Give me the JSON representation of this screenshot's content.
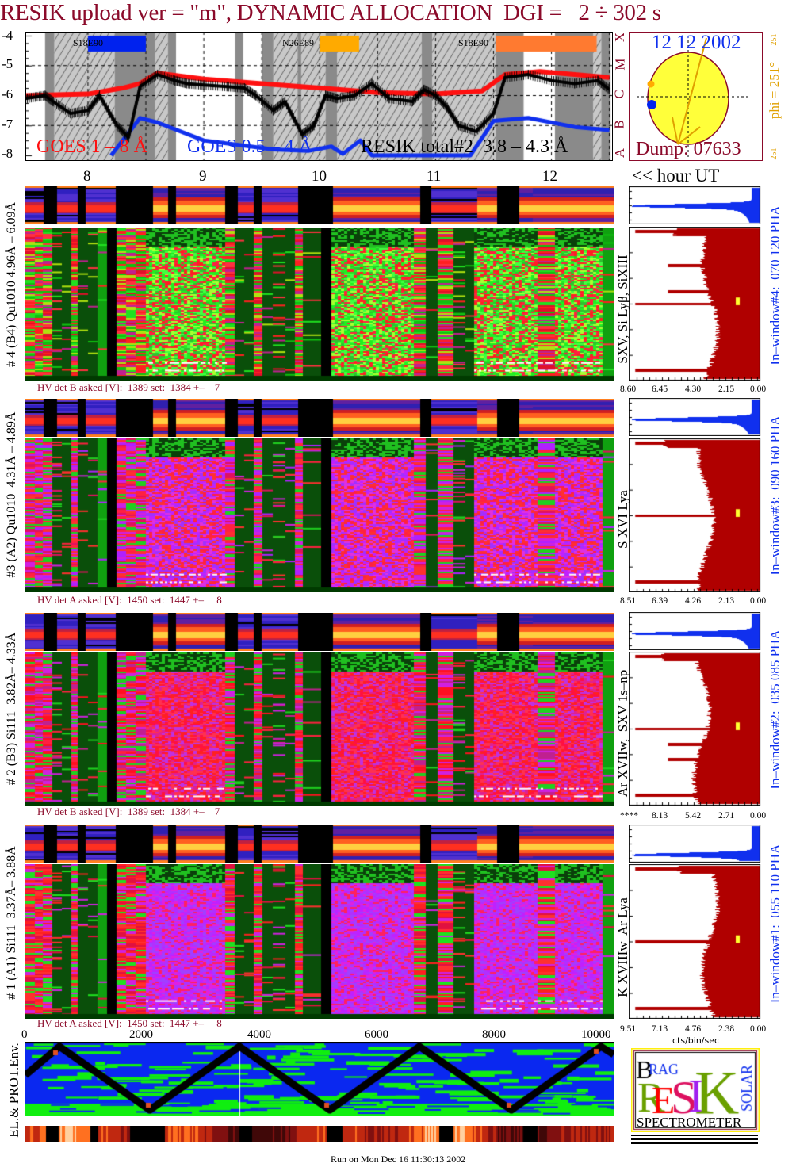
{
  "title": "RESIK upload ver = \"m\", DYNAMIC ALLOCATION  DGI =   2 ÷ 302 s",
  "goes_plot": {
    "y_ticks": [
      "-4",
      "-5",
      "-6",
      "-7",
      "-8"
    ],
    "class_letters": [
      "X",
      "M",
      "C",
      "B",
      "A"
    ],
    "regions": [
      {
        "label": "S18E90",
        "color": "#0022ee"
      },
      {
        "label": "N26E89",
        "color": "#ffaa00"
      },
      {
        "label": "S18E90",
        "color": "#ff7a30"
      }
    ],
    "legend": {
      "goes_long": "GOES 1 – 8 Å",
      "goes_short": "GOES 0.5 – 4 Å",
      "resik": "RESIK total#2  3.8 – 4.3 Å"
    },
    "colors": {
      "goes_long": "#ff1010",
      "goes_short": "#1030ee",
      "resik": "#000000"
    }
  },
  "sun": {
    "date": "12 12 2002",
    "dump": "Dump: 07633",
    "phi": "phi = 251°",
    "phi_small": "251",
    "phi_small2": "251"
  },
  "hours": {
    "ticks": [
      "8",
      "9",
      "10",
      "11",
      "12"
    ],
    "unit_label": "<< hour UT"
  },
  "panels": [
    {
      "label": "# 4 (B4) Qu1010 4.96Å – 6.09Å",
      "lines": "SXV, Si Lyβ, SiXIII",
      "window": "In–window#4:  070 120 PHA",
      "hv": "HV det B asked [V]:  1389 set:  1384 +–    7",
      "hist_ticks": [
        "8.60",
        "6.45",
        "4.30",
        "2.15",
        "0.00"
      ]
    },
    {
      "label": "#3 (A2) Qu1010  4.31Å – 4.89Å",
      "lines": "S XVI Lya",
      "window": "In–window#3:  090 160 PHA",
      "hv": "HV det A asked [V]:  1450 set:  1447 +–     8",
      "hist_ticks": [
        "8.51",
        "6.39",
        "4.26",
        "2.13",
        "0.00"
      ]
    },
    {
      "label": "# 2 (B3) Si111  3.82Å– 4.33Å",
      "lines": "Ar XVIIw,  SXV 1s–np",
      "window": "In–window#2:  035 085 PHA",
      "hv": "HV det B asked [V]:  1389 set:  1384 +–    7",
      "hist_ticks": [
        "****",
        "8.13",
        "5.42",
        "2.71",
        "0.00"
      ]
    },
    {
      "label": "# 1 (A1) Si111  3.37Å– 3.88Å",
      "lines": "K XVIIIw  Ar Lya",
      "window": "In–window#1:  055 110 PHA",
      "hv": "HV det A asked [V]:  1450 set:  1447 +–     8",
      "hist_ticks": [
        "9.51",
        "7.13",
        "4.76",
        "2.38",
        "0.00"
      ]
    }
  ],
  "hist_unit": "cts/bin/sec",
  "env": {
    "label": "EL.& PROT.Env.",
    "x_ticks": [
      "0",
      "2000",
      "4000",
      "6000",
      "8000",
      "10000"
    ]
  },
  "logo": {
    "text": "BRAGG RESIK SOLAR SPECTROMETER",
    "word": "SPECTROMETER"
  },
  "footer": "Run on Mon Dec 16 11:30:13 2002",
  "chart_data": {
    "type": "line",
    "title": "RESIK upload ver = \"m\", DYNAMIC ALLOCATION  DGI =   2 ÷ 302 s",
    "xlabel": "<< hour UT",
    "ylabel": "",
    "xlim": [
      7.46,
      12.53
    ],
    "ylim": [
      -8,
      -4
    ],
    "y_scale_note": "log10 flux",
    "grid": true,
    "shaded_intervals_dark": [
      [
        7.63,
        7.71
      ],
      [
        8.23,
        8.58
      ],
      [
        8.69,
        8.76
      ],
      [
        9.27,
        9.34
      ],
      [
        9.5,
        9.6
      ],
      [
        9.81,
        9.84
      ],
      [
        10.05,
        10.15
      ],
      [
        10.88,
        10.97
      ],
      [
        11.52,
        11.76
      ],
      [
        12.03,
        12.36
      ],
      [
        12.43,
        12.51
      ]
    ],
    "shaded_intervals_hatched": [
      [
        7.71,
        8.23
      ],
      [
        8.58,
        8.69
      ],
      [
        9.6,
        10.05
      ],
      [
        10.15,
        10.88
      ],
      [
        10.97,
        11.52
      ],
      [
        12.36,
        12.43
      ]
    ],
    "series": [
      {
        "name": "GOES 1 – 8 Å",
        "x": [
          7.46,
          8.0,
          8.3,
          8.45,
          8.6,
          9.0,
          9.5,
          10.0,
          10.5,
          11.0,
          11.4,
          11.6,
          11.9,
          12.2,
          12.5
        ],
        "y": [
          -6.0,
          -5.95,
          -5.75,
          -5.6,
          -5.25,
          -5.45,
          -5.6,
          -5.75,
          -5.9,
          -5.95,
          -5.85,
          -5.3,
          -5.2,
          -5.3,
          -5.4
        ]
      },
      {
        "name": "GOES 0.5 – 4 Å",
        "x": [
          8.2,
          8.45,
          8.6,
          9.0,
          9.3,
          9.6,
          9.9,
          10.1,
          10.2,
          10.35,
          10.45,
          11.3,
          11.5,
          11.8,
          12.2,
          12.5
        ],
        "y": [
          -8.0,
          -6.75,
          -6.9,
          -7.5,
          -7.65,
          -7.8,
          -7.85,
          -7.7,
          -7.95,
          -7.5,
          -8.0,
          -8.0,
          -6.85,
          -6.75,
          -7.05,
          -7.15
        ]
      },
      {
        "name": "RESIK total#2  3.8 – 4.3 Å",
        "x": [
          7.46,
          7.63,
          7.7,
          7.85,
          8.0,
          8.1,
          8.25,
          8.35,
          8.45,
          8.6,
          8.75,
          8.85,
          9.0,
          9.2,
          9.35,
          9.45,
          9.6,
          9.7,
          9.85,
          9.95,
          10.05,
          10.15,
          10.3,
          10.45,
          10.6,
          10.8,
          10.9,
          11.0,
          11.1,
          11.2,
          11.35,
          11.5,
          11.6,
          11.8,
          12.0,
          12.2,
          12.4,
          12.5
        ],
        "y": [
          -6.1,
          -6.0,
          -6.2,
          -6.6,
          -6.5,
          -6.0,
          -7.0,
          -7.4,
          -5.7,
          -5.3,
          -5.5,
          -5.6,
          -5.65,
          -5.7,
          -5.75,
          -6.0,
          -6.5,
          -6.2,
          -7.3,
          -7.0,
          -6.0,
          -6.1,
          -6.0,
          -5.6,
          -6.1,
          -6.2,
          -5.8,
          -6.0,
          -6.4,
          -7.0,
          -7.2,
          -6.6,
          -5.4,
          -5.3,
          -5.5,
          -5.6,
          -5.5,
          -5.8
        ]
      }
    ],
    "x_ticks": [
      "8",
      "9",
      "10",
      "11",
      "12"
    ],
    "y_ticks": [
      "-4",
      "-5",
      "-6",
      "-7",
      "-8"
    ]
  }
}
